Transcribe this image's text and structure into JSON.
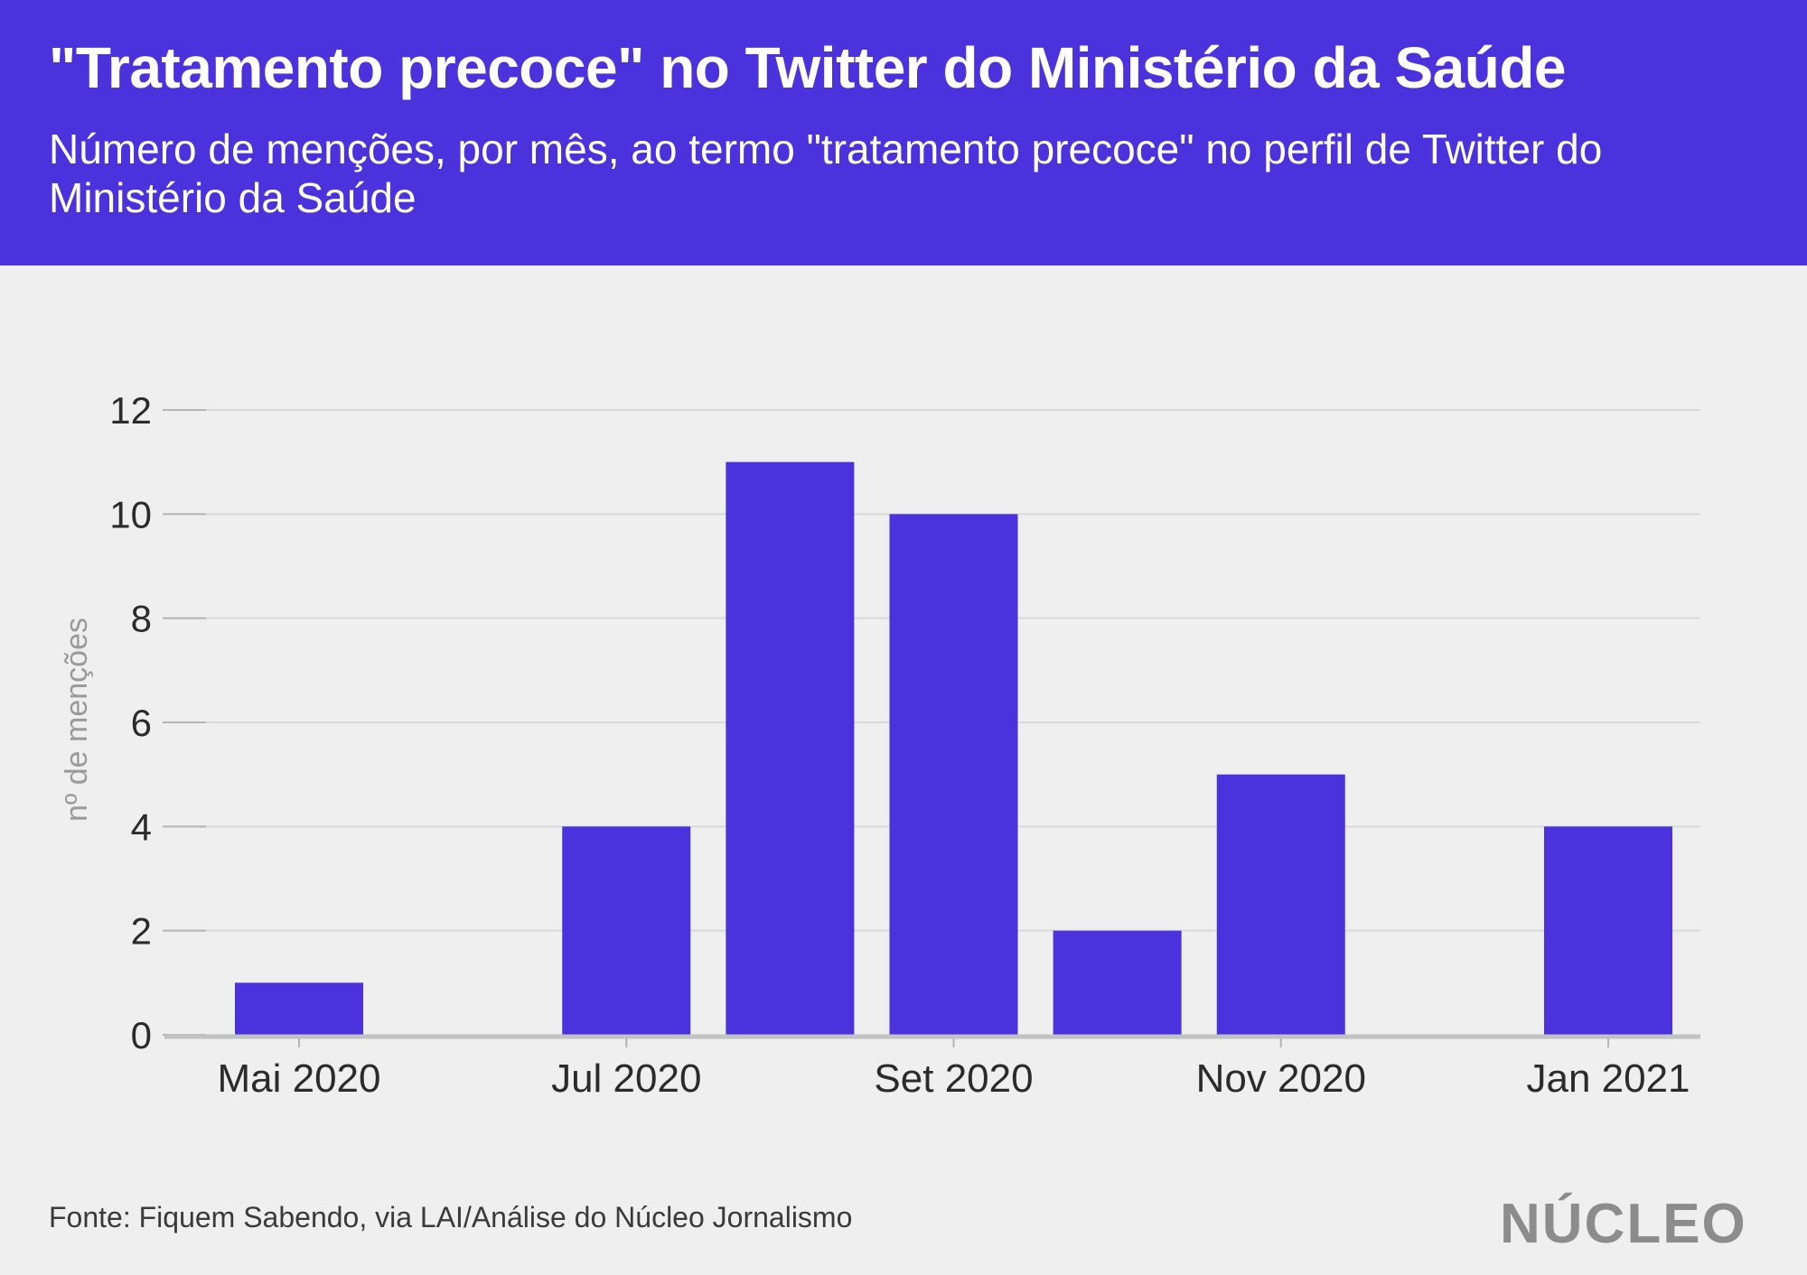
{
  "header": {
    "title": "\"Tratamento precoce\" no Twitter do Ministério da Saúde",
    "subtitle": "Número de menções, por mês, ao termo \"tratamento precoce\" no perfil de Twitter do Ministério da Saúde"
  },
  "colors": {
    "accent": "#4b32dc",
    "background": "#efefef",
    "gridline": "#d9d9d9",
    "baseline": "#c2c2c2"
  },
  "chart_data": {
    "type": "bar",
    "x": [
      "2020-05",
      "2020-06",
      "2020-07",
      "2020-08",
      "2020-09",
      "2020-10",
      "2020-11",
      "2020-12",
      "2021-01"
    ],
    "values": [
      1,
      0,
      4,
      11,
      10,
      2,
      5,
      0,
      4
    ],
    "x_tick_labels": [
      {
        "x": "2020-05",
        "label": "Mai 2020"
      },
      {
        "x": "2020-07",
        "label": "Jul 2020"
      },
      {
        "x": "2020-09",
        "label": "Set 2020"
      },
      {
        "x": "2020-11",
        "label": "Nov 2020"
      },
      {
        "x": "2021-01",
        "label": "Jan 2021"
      }
    ],
    "y_ticks": [
      "0",
      "2",
      "4",
      "6",
      "8",
      "10",
      "12"
    ],
    "ylim": [
      0,
      12
    ],
    "ylabel": "nº de menções",
    "xlabel": "",
    "grid": true,
    "legend": "none"
  },
  "footer": {
    "source": "Fonte: Fiquem Sabendo, via LAI/Análise do Núcleo Jornalismo",
    "logo_text": "NÚCLEO"
  }
}
